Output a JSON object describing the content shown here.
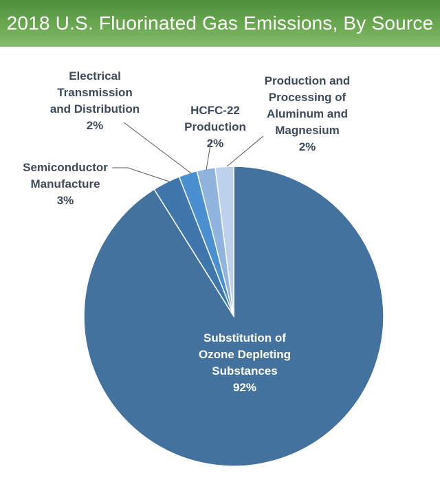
{
  "chart_data": {
    "type": "pie",
    "title": "2018 U.S. Fluorinated Gas Emissions, By Source",
    "slices": [
      {
        "label": [
          "Substitution of",
          "Ozone Depleting",
          "Substances"
        ],
        "value": 92,
        "value_label": "92%",
        "color": "#43729f"
      },
      {
        "label": [
          "Semiconductor",
          "Manufacture"
        ],
        "value": 3,
        "value_label": "3%",
        "color": "#3f77ad"
      },
      {
        "label": [
          "Electrical",
          "Transmission",
          "and Distribution"
        ],
        "value": 2,
        "value_label": "2%",
        "color": "#4a8fd0"
      },
      {
        "label": [
          "HCFC-22",
          "Production"
        ],
        "value": 2,
        "value_label": "2%",
        "color": "#90b4dd"
      },
      {
        "label": [
          "Production and",
          "Processing of",
          "Aluminum and",
          "Magnesium"
        ],
        "value": 2,
        "value_label": "2%",
        "color": "#bdd1ec"
      }
    ]
  }
}
